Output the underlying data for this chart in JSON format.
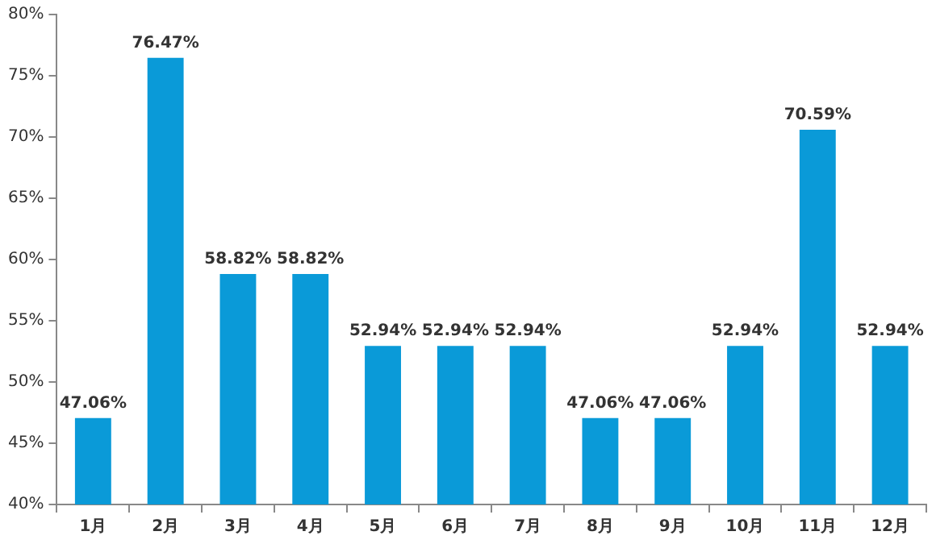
{
  "chart_data": {
    "type": "bar",
    "categories": [
      "1月",
      "2月",
      "3月",
      "4月",
      "5月",
      "6月",
      "7月",
      "8月",
      "9月",
      "10月",
      "11月",
      "12月"
    ],
    "values": [
      47.06,
      76.47,
      58.82,
      58.82,
      52.94,
      52.94,
      52.94,
      47.06,
      47.06,
      52.94,
      70.59,
      52.94
    ],
    "value_labels": [
      "47.06%",
      "76.47%",
      "58.82%",
      "58.82%",
      "52.94%",
      "52.94%",
      "52.94%",
      "47.06%",
      "47.06%",
      "52.94%",
      "70.59%",
      "52.94%"
    ],
    "color": "#0a9ad8",
    "ylim": [
      40,
      80
    ],
    "yticks": [
      {
        "value": 40,
        "label": "40%"
      },
      {
        "value": 45,
        "label": "45%"
      },
      {
        "value": 50,
        "label": "50%"
      },
      {
        "value": 55,
        "label": "55%"
      },
      {
        "value": 60,
        "label": "60%"
      },
      {
        "value": 65,
        "label": "65%"
      },
      {
        "value": 70,
        "label": "70%"
      },
      {
        "value": 75,
        "label": "75%"
      },
      {
        "value": 80,
        "label": "80%"
      }
    ],
    "grid": false,
    "legend": false
  }
}
